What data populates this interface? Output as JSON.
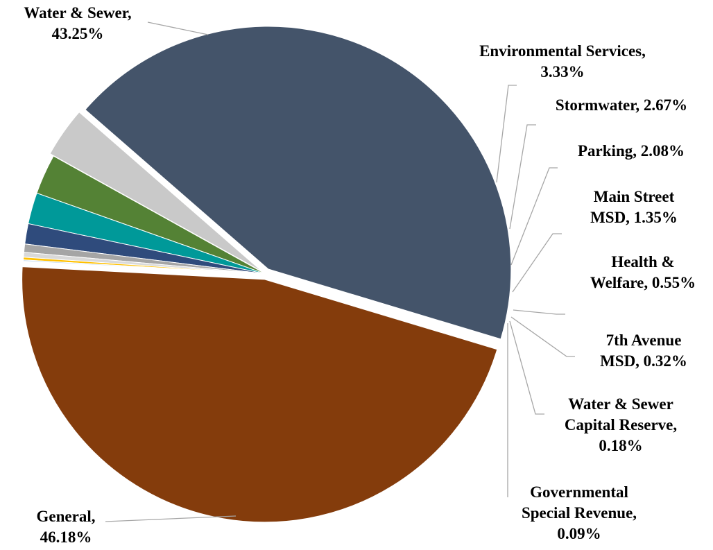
{
  "chart_data": {
    "type": "pie",
    "title": "",
    "slices": [
      {
        "name": "General",
        "value": 46.18,
        "color": "#843c0c",
        "label_lines": [
          "General,",
          "46.18%"
        ]
      },
      {
        "name": "Water & Sewer",
        "value": 43.25,
        "color": "#44546a",
        "label_lines": [
          "Water & Sewer,",
          "43.25%"
        ]
      },
      {
        "name": "Environmental Services",
        "value": 3.33,
        "color": "#c9c9c9",
        "label_lines": [
          "Environmental Services,",
          "3.33%"
        ]
      },
      {
        "name": "Stormwater",
        "value": 2.67,
        "color": "#548235",
        "label_lines": [
          "Stormwater, 2.67%"
        ]
      },
      {
        "name": "Parking",
        "value": 2.08,
        "color": "#009999",
        "label_lines": [
          "Parking, 2.08%"
        ]
      },
      {
        "name": "Main Street MSD",
        "value": 1.35,
        "color": "#2f4b7c",
        "label_lines": [
          "Main Street",
          "MSD, 1.35%"
        ]
      },
      {
        "name": "Health & Welfare",
        "value": 0.55,
        "color": "#a5a5a5",
        "label_lines": [
          "Health &",
          "Welfare, 0.55%"
        ]
      },
      {
        "name": "7th Avenue MSD",
        "value": 0.32,
        "color": "#d9d9d9",
        "label_lines": [
          "7th Avenue",
          "MSD, 0.32%"
        ]
      },
      {
        "name": "Water & Sewer Capital Reserve",
        "value": 0.18,
        "color": "#ffc000",
        "label_lines": [
          "Water & Sewer",
          "Capital Reserve,",
          "0.18%"
        ]
      },
      {
        "name": "Governmental Special Revenue",
        "value": 0.09,
        "color": "#bdd7ee",
        "label_lines": [
          "Governmental",
          "Special Revenue,",
          "0.09%"
        ]
      }
    ]
  }
}
